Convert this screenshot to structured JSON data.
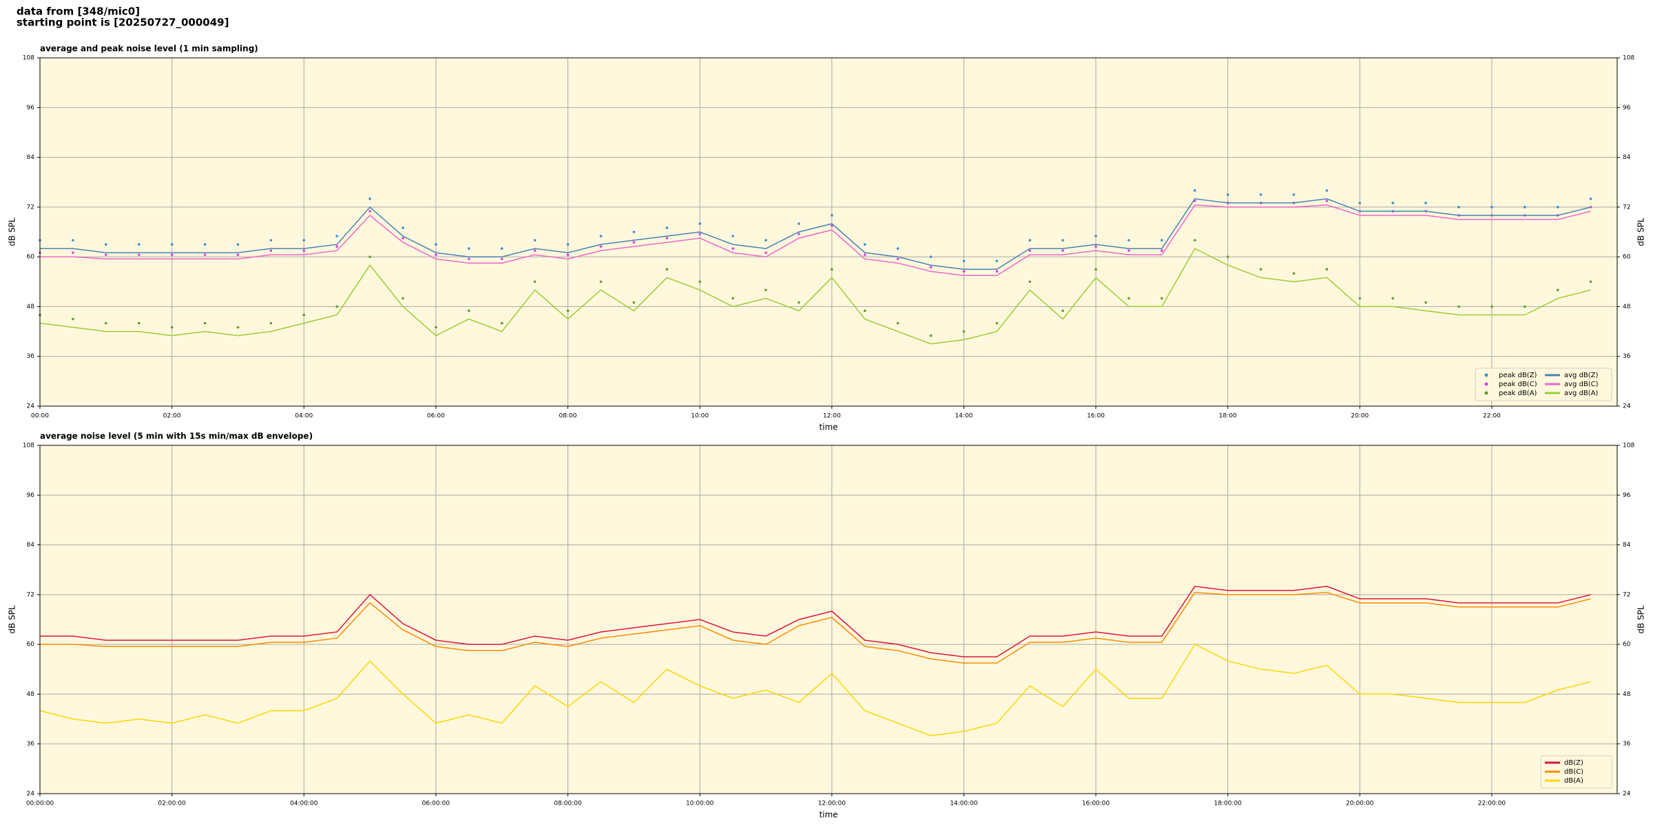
{
  "header": {
    "line1": "data from [348/mic0]",
    "line2": "starting point is [20250727_000049]"
  },
  "chart_data": [
    {
      "type": "line",
      "title": "average and peak noise level (1 min sampling)",
      "xlabel": "time",
      "ylabel": "dB SPL",
      "xlim": [
        0,
        23.9
      ],
      "ylim": [
        24,
        108
      ],
      "yticks": [
        24,
        36,
        48,
        60,
        72,
        84,
        96,
        108
      ],
      "xticks": [
        {
          "value": 0,
          "label": "00:00"
        },
        {
          "value": 2,
          "label": "02:00"
        },
        {
          "value": 4,
          "label": "04:00"
        },
        {
          "value": 6,
          "label": "06:00"
        },
        {
          "value": 8,
          "label": "08:00"
        },
        {
          "value": 10,
          "label": "10:00"
        },
        {
          "value": 12,
          "label": "12:00"
        },
        {
          "value": 14,
          "label": "14:00"
        },
        {
          "value": 16,
          "label": "16:00"
        },
        {
          "value": 18,
          "label": "18:00"
        },
        {
          "value": 20,
          "label": "20:00"
        },
        {
          "value": 22,
          "label": "22:00"
        }
      ],
      "grid": true,
      "background": "#fff8dc",
      "legend": "lower right",
      "x": [
        0,
        0.5,
        1,
        1.5,
        2,
        2.5,
        3,
        3.5,
        4,
        4.5,
        5,
        5.5,
        6,
        6.5,
        7,
        7.5,
        8,
        8.5,
        9,
        9.5,
        10,
        10.5,
        11,
        11.5,
        12,
        12.5,
        13,
        13.5,
        14,
        14.5,
        15,
        15.5,
        16,
        16.5,
        17,
        17.5,
        18,
        18.5,
        19,
        19.5,
        20,
        20.5,
        21,
        21.5,
        22,
        22.5,
        23,
        23.5
      ],
      "series": [
        {
          "name": "peak dB(Z)",
          "style": "marker",
          "color": "#3a8fd0",
          "values": [
            64,
            64,
            63,
            63,
            63,
            63,
            63,
            64,
            64,
            65,
            74,
            67,
            63,
            62,
            62,
            64,
            63,
            65,
            66,
            67,
            68,
            65,
            64,
            68,
            70,
            63,
            62,
            60,
            59,
            59,
            64,
            64,
            65,
            64,
            64,
            76,
            75,
            75,
            75,
            76,
            73,
            73,
            73,
            72,
            72,
            72,
            72,
            74
          ]
        },
        {
          "name": "peak dB(C)",
          "style": "marker",
          "color": "#e040e0",
          "values": [
            61,
            61,
            60.5,
            60.5,
            60.5,
            60.5,
            60.5,
            61.5,
            61.5,
            62.5,
            71,
            64.5,
            60.5,
            59.5,
            59.5,
            61.5,
            60.5,
            62.5,
            63.5,
            64.5,
            65.5,
            62,
            61,
            65.5,
            67.5,
            60.5,
            59.5,
            57.5,
            56.5,
            56.5,
            61.5,
            61.5,
            62.5,
            61.5,
            61.5,
            73.5,
            73,
            73,
            73,
            73.5,
            71,
            71,
            71,
            70,
            70,
            70,
            70,
            72
          ]
        },
        {
          "name": "peak dB(A)",
          "style": "marker",
          "color": "#5aa02c",
          "values": [
            46,
            45,
            44,
            44,
            43,
            44,
            43,
            44,
            46,
            48,
            60,
            50,
            43,
            47,
            44,
            54,
            47,
            54,
            49,
            57,
            54,
            50,
            52,
            49,
            57,
            47,
            44,
            41,
            42,
            44,
            54,
            47,
            57,
            50,
            50,
            64,
            60,
            57,
            56,
            57,
            50,
            50,
            49,
            48,
            48,
            48,
            52,
            54
          ]
        },
        {
          "name": "avg dB(Z)",
          "style": "line",
          "color": "#4682b4",
          "values": [
            62,
            62,
            61,
            61,
            61,
            61,
            61,
            62,
            62,
            63,
            72,
            65,
            61,
            60,
            60,
            62,
            61,
            63,
            64,
            65,
            66,
            63,
            62,
            66,
            68,
            61,
            60,
            58,
            57,
            57,
            62,
            62,
            63,
            62,
            62,
            74,
            73,
            73,
            73,
            74,
            71,
            71,
            71,
            70,
            70,
            70,
            70,
            72
          ]
        },
        {
          "name": "avg dB(C)",
          "style": "line",
          "color": "#ee66cc",
          "values": [
            60,
            60,
            59.5,
            59.5,
            59.5,
            59.5,
            59.5,
            60.5,
            60.5,
            61.5,
            70,
            63.5,
            59.5,
            58.5,
            58.5,
            60.5,
            59.5,
            61.5,
            62.5,
            63.5,
            64.5,
            61,
            60,
            64.5,
            66.5,
            59.5,
            58.5,
            56.5,
            55.5,
            55.5,
            60.5,
            60.5,
            61.5,
            60.5,
            60.5,
            72.5,
            72,
            72,
            72,
            72.5,
            70,
            70,
            70,
            69,
            69,
            69,
            69,
            71
          ]
        },
        {
          "name": "avg dB(A)",
          "style": "line",
          "color": "#9acd32",
          "values": [
            44,
            43,
            42,
            42,
            41,
            42,
            41,
            42,
            44,
            46,
            58,
            48,
            41,
            45,
            42,
            52,
            45,
            52,
            47,
            55,
            52,
            48,
            50,
            47,
            55,
            45,
            42,
            39,
            40,
            42,
            52,
            45,
            55,
            48,
            48,
            62,
            58,
            55,
            54,
            55,
            48,
            48,
            47,
            46,
            46,
            46,
            50,
            52
          ]
        }
      ]
    },
    {
      "type": "line",
      "title": "average noise level (5 min with 15s min/max dB envelope)",
      "xlabel": "time",
      "ylabel": "dB SPL",
      "xlim": [
        0,
        23.9
      ],
      "ylim": [
        24,
        108
      ],
      "yticks": [
        24,
        36,
        48,
        60,
        72,
        84,
        96,
        108
      ],
      "xticks": [
        {
          "value": 0,
          "label": "00:00:00"
        },
        {
          "value": 2,
          "label": "02:00:00"
        },
        {
          "value": 4,
          "label": "04:00:00"
        },
        {
          "value": 6,
          "label": "06:00:00"
        },
        {
          "value": 8,
          "label": "08:00:00"
        },
        {
          "value": 10,
          "label": "10:00:00"
        },
        {
          "value": 12,
          "label": "12:00:00"
        },
        {
          "value": 14,
          "label": "14:00:00"
        },
        {
          "value": 16,
          "label": "16:00:00"
        },
        {
          "value": 18,
          "label": "18:00:00"
        },
        {
          "value": 20,
          "label": "20:00:00"
        },
        {
          "value": 22,
          "label": "22:00:00"
        }
      ],
      "grid": true,
      "background": "#fff8dc",
      "legend": "lower right",
      "x": [
        0,
        0.5,
        1,
        1.5,
        2,
        2.5,
        3,
        3.5,
        4,
        4.5,
        5,
        5.5,
        6,
        6.5,
        7,
        7.5,
        8,
        8.5,
        9,
        9.5,
        10,
        10.5,
        11,
        11.5,
        12,
        12.5,
        13,
        13.5,
        14,
        14.5,
        15,
        15.5,
        16,
        16.5,
        17,
        17.5,
        18,
        18.5,
        19,
        19.5,
        20,
        20.5,
        21,
        21.5,
        22,
        22.5,
        23,
        23.5
      ],
      "series": [
        {
          "name": "dB(Z)",
          "style": "line",
          "color": "#dc143c",
          "values": [
            62,
            62,
            61,
            61,
            61,
            61,
            61,
            62,
            62,
            63,
            72,
            65,
            61,
            60,
            60,
            62,
            61,
            63,
            64,
            65,
            66,
            63,
            62,
            66,
            68,
            61,
            60,
            58,
            57,
            57,
            62,
            62,
            63,
            62,
            62,
            74,
            73,
            73,
            73,
            74,
            71,
            71,
            71,
            70,
            70,
            70,
            70,
            72
          ]
        },
        {
          "name": "dB(C)",
          "style": "line",
          "color": "#ff8c00",
          "values": [
            60,
            60,
            59.5,
            59.5,
            59.5,
            59.5,
            59.5,
            60.5,
            60.5,
            61.5,
            70,
            63.5,
            59.5,
            58.5,
            58.5,
            60.5,
            59.5,
            61.5,
            62.5,
            63.5,
            64.5,
            61,
            60,
            64.5,
            66.5,
            59.5,
            58.5,
            56.5,
            55.5,
            55.5,
            60.5,
            60.5,
            61.5,
            60.5,
            60.5,
            72.5,
            72,
            72,
            72,
            72.5,
            70,
            70,
            70,
            69,
            69,
            69,
            69,
            71
          ]
        },
        {
          "name": "dB(A)",
          "style": "line",
          "color": "#ffd700",
          "values": [
            44,
            42,
            41,
            42,
            41,
            43,
            41,
            44,
            44,
            47,
            56,
            48,
            41,
            43,
            41,
            50,
            45,
            51,
            46,
            54,
            50,
            47,
            49,
            46,
            53,
            44,
            41,
            38,
            39,
            41,
            50,
            45,
            54,
            47,
            47,
            60,
            56,
            54,
            53,
            55,
            48,
            48,
            47,
            46,
            46,
            46,
            49,
            51
          ]
        }
      ]
    }
  ]
}
